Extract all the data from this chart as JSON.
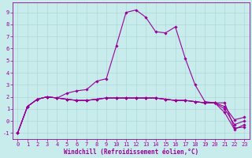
{
  "xlabel": "Windchill (Refroidissement éolien,°C)",
  "background_color": "#c8ecec",
  "grid_color": "#b0d8d8",
  "line_color": "#990099",
  "x_hours": [
    0,
    1,
    2,
    3,
    4,
    5,
    6,
    7,
    8,
    9,
    10,
    11,
    12,
    13,
    14,
    15,
    16,
    17,
    18,
    19,
    20,
    21,
    22,
    23
  ],
  "series": [
    [
      -1.0,
      1.2,
      1.8,
      2.0,
      1.9,
      2.3,
      2.5,
      2.6,
      3.3,
      3.5,
      6.2,
      9.0,
      9.2,
      8.6,
      7.4,
      7.3,
      7.8,
      5.2,
      3.0,
      1.6,
      1.5,
      1.5,
      -0.6,
      -0.5
    ],
    [
      -1.0,
      1.2,
      1.8,
      2.0,
      1.9,
      1.8,
      1.7,
      1.7,
      1.8,
      1.9,
      1.9,
      1.9,
      1.9,
      1.9,
      1.9,
      1.8,
      1.7,
      1.7,
      1.6,
      1.5,
      1.5,
      0.7,
      -0.7,
      -0.3
    ],
    [
      -1.0,
      1.2,
      1.8,
      2.0,
      1.9,
      1.8,
      1.7,
      1.7,
      1.8,
      1.9,
      1.9,
      1.9,
      1.9,
      1.9,
      1.9,
      1.8,
      1.7,
      1.7,
      1.6,
      1.5,
      1.5,
      1.0,
      -0.3,
      0.0
    ],
    [
      -1.0,
      1.2,
      1.8,
      2.0,
      1.9,
      1.8,
      1.7,
      1.7,
      1.8,
      1.9,
      1.9,
      1.9,
      1.9,
      1.9,
      1.9,
      1.8,
      1.7,
      1.7,
      1.6,
      1.5,
      1.5,
      1.2,
      0.1,
      0.3
    ]
  ],
  "ylim": [
    -1.5,
    9.8
  ],
  "xlim": [
    -0.5,
    23.5
  ],
  "yticks": [
    -1,
    0,
    1,
    2,
    3,
    4,
    5,
    6,
    7,
    8,
    9
  ],
  "xticks": [
    0,
    1,
    2,
    3,
    4,
    5,
    6,
    7,
    8,
    9,
    10,
    11,
    12,
    13,
    14,
    15,
    16,
    17,
    18,
    19,
    20,
    21,
    22,
    23
  ],
  "tick_fontsize": 5.0,
  "xlabel_fontsize": 5.5,
  "marker": "D",
  "marker_size": 1.8,
  "line_width": 0.8
}
